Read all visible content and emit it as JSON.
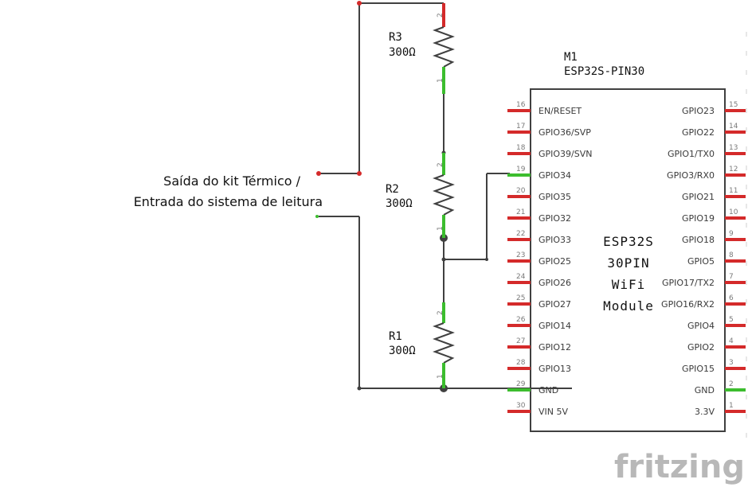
{
  "note": {
    "line1": "Saída do kit Térmico /",
    "line2": "Entrada do sistema de leitura"
  },
  "resistors": [
    {
      "ref": "R3",
      "value": "300Ω",
      "pin_top": "2",
      "pin_bottom": "1"
    },
    {
      "ref": "R2",
      "value": "300Ω",
      "pin_top": "2",
      "pin_bottom": "1"
    },
    {
      "ref": "R1",
      "value": "300Ω",
      "pin_top": "2",
      "pin_bottom": "1"
    }
  ],
  "module": {
    "ref": "M1",
    "part": "ESP32S-PIN30",
    "center_lines": [
      "ESP32S",
      "30PIN",
      "WiFi",
      "Module"
    ],
    "left_pins": [
      {
        "num": "16",
        "label": "EN/RESET",
        "connected": false
      },
      {
        "num": "17",
        "label": "GPIO36/SVP",
        "connected": false
      },
      {
        "num": "18",
        "label": "GPIO39/SVN",
        "connected": false
      },
      {
        "num": "19",
        "label": "GPIO34",
        "connected": true
      },
      {
        "num": "20",
        "label": "GPIO35",
        "connected": false
      },
      {
        "num": "21",
        "label": "GPIO32",
        "connected": false
      },
      {
        "num": "22",
        "label": "GPIO33",
        "connected": false
      },
      {
        "num": "23",
        "label": "GPIO25",
        "connected": false
      },
      {
        "num": "24",
        "label": "GPIO26",
        "connected": false
      },
      {
        "num": "25",
        "label": "GPIO27",
        "connected": false
      },
      {
        "num": "26",
        "label": "GPIO14",
        "connected": false
      },
      {
        "num": "27",
        "label": "GPIO12",
        "connected": false
      },
      {
        "num": "28",
        "label": "GPIO13",
        "connected": false
      },
      {
        "num": "29",
        "label": "GND",
        "connected": true
      },
      {
        "num": "30",
        "label": "VIN 5V",
        "connected": false
      }
    ],
    "right_pins": [
      {
        "num": "15",
        "label": "GPIO23",
        "connected": false
      },
      {
        "num": "14",
        "label": "GPIO22",
        "connected": false
      },
      {
        "num": "13",
        "label": "GPIO1/TX0",
        "connected": false
      },
      {
        "num": "12",
        "label": "GPIO3/RX0",
        "connected": false
      },
      {
        "num": "11",
        "label": "GPIO21",
        "connected": false
      },
      {
        "num": "10",
        "label": "GPIO19",
        "connected": false
      },
      {
        "num": "9",
        "label": "GPIO18",
        "connected": false
      },
      {
        "num": "8",
        "label": "GPIO5",
        "connected": false
      },
      {
        "num": "7",
        "label": "GPIO17/TX2",
        "connected": false
      },
      {
        "num": "6",
        "label": "GPIO16/RX2",
        "connected": false
      },
      {
        "num": "5",
        "label": "GPIO4",
        "connected": false
      },
      {
        "num": "4",
        "label": "GPIO2",
        "connected": false
      },
      {
        "num": "3",
        "label": "GPIO15",
        "connected": false
      },
      {
        "num": "2",
        "label": "GND",
        "connected": true
      },
      {
        "num": "1",
        "label": "3.3V",
        "connected": false
      }
    ]
  },
  "logo": "fritzing",
  "colors": {
    "wire": "#404040",
    "pin_unconnected": "#d42a2a",
    "pin_connected": "#3cbd2e",
    "logo": "#b8b8b8"
  }
}
